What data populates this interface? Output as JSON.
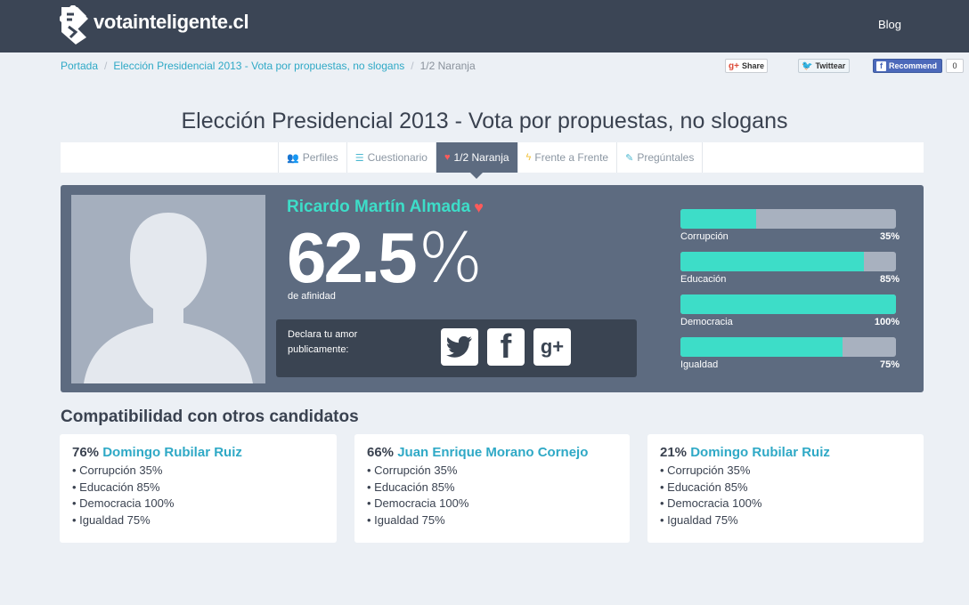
{
  "header": {
    "logo_text": "votainteligente.cl",
    "blog_label": "Blog"
  },
  "breadcrumb": {
    "items": [
      "Portada",
      "Elección Presidencial 2013 - Vota por propuestas, no slogans"
    ],
    "current": "1/2 Naranja",
    "separator": "/"
  },
  "social": {
    "gplus_label": "Share",
    "twitter_label": "Twittear",
    "facebook_label": "Recommend",
    "facebook_count": "0"
  },
  "page_title": "Elección Presidencial 2013 - Vota por propuestas, no slogans",
  "nav": {
    "tabs": [
      {
        "label": "Perfiles",
        "icon": "users-icon",
        "glyph": "👥"
      },
      {
        "label": "Cuestionario",
        "icon": "list-icon",
        "glyph": "☰"
      },
      {
        "label": "1/2 Naranja",
        "icon": "heart-icon",
        "glyph": "♥",
        "active": true
      },
      {
        "label": "Frente a Frente",
        "icon": "bolt-icon",
        "glyph": "ϟ"
      },
      {
        "label": "Pregúntales",
        "icon": "edit-icon",
        "glyph": "✎"
      }
    ]
  },
  "candidate": {
    "name": "Ricardo Martín Almada",
    "score": "62.5",
    "score_symbol": "%",
    "score_value": 62.5,
    "afinidad_label": "de afinidad",
    "share_text": "Declara tu amor publicamente:"
  },
  "bars": [
    {
      "label": "Corrupción",
      "value_text": "35%",
      "value": 35
    },
    {
      "label": "Educación",
      "value_text": "85%",
      "value": 85
    },
    {
      "label": "Democracia",
      "value_text": "100%",
      "value": 100
    },
    {
      "label": "Igualdad",
      "value_text": "75%",
      "value": 75
    }
  ],
  "compat": {
    "title": "Compatibilidad con otros candidatos",
    "cards": [
      {
        "pct": "76%",
        "name": "Domingo Rubilar Ruiz",
        "items": [
          "Corrupción 35%",
          "Educación 85%",
          "Democracia 100%",
          "Igualdad 75%"
        ]
      },
      {
        "pct": "66%",
        "name": "Juan Enrique Morano Cornejo",
        "items": [
          "Corrupción 35%",
          "Educación 85%",
          "Democracia 100%",
          "Igualdad 75%"
        ]
      },
      {
        "pct": "21%",
        "name": "Domingo Rubilar Ruiz",
        "items": [
          "Corrupción 35%",
          "Educación 85%",
          "Democracia 100%",
          "Igualdad 75%"
        ]
      }
    ]
  },
  "colors": {
    "topbar": "#3b4555",
    "accent_teal": "#3dddc8",
    "link": "#2fa9c6",
    "heart": "#ff5a5a",
    "card": "#5d6b80"
  }
}
